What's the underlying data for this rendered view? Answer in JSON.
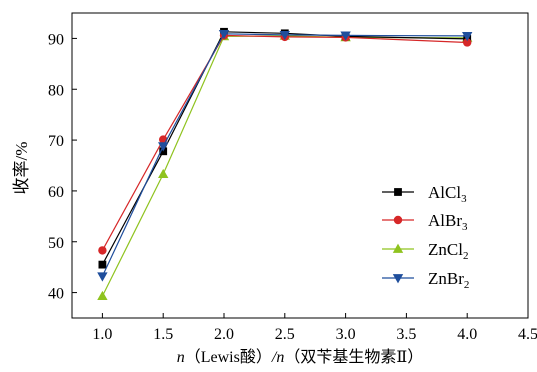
{
  "chart_data": {
    "type": "line",
    "title": "",
    "ylabel": "收率/%",
    "xlabel": {
      "n1": "n",
      "paren_open": "（",
      "part1": "Lewis酸",
      "paren_close": "）",
      "slash": "/",
      "n2": "n",
      "part2_open": "（",
      "part2": "双苄基生物素",
      "roman": "Ⅱ",
      "part2_close": "）"
    },
    "xlim": [
      0.75,
      4.5
    ],
    "ylim": [
      35,
      95
    ],
    "xticks": [
      "1.0",
      "1.5",
      "2.0",
      "2.5",
      "3.0",
      "3.5",
      "4.0",
      "4.5"
    ],
    "yticks": [
      "40",
      "50",
      "60",
      "70",
      "80",
      "90"
    ],
    "x": [
      1.0,
      1.5,
      2.0,
      2.5,
      3.0,
      4.0
    ],
    "legend_position": "center-right",
    "series": [
      {
        "name": "AlCl₃",
        "base": "AlCl",
        "sub": "3",
        "color": "#000000",
        "marker": "square",
        "values": [
          45.5,
          67.8,
          91.3,
          91.0,
          90.4,
          89.9
        ]
      },
      {
        "name": "AlBr₃",
        "base": "AlBr",
        "sub": "3",
        "color": "#d62728",
        "marker": "circle",
        "values": [
          48.3,
          70.1,
          90.6,
          90.3,
          90.2,
          89.2
        ]
      },
      {
        "name": "ZnCl₂",
        "base": "ZnCl",
        "sub": "2",
        "color": "#8fc31f",
        "marker": "triangle-up",
        "values": [
          39.3,
          63.3,
          90.4,
          90.5,
          90.2,
          90.1
        ]
      },
      {
        "name": "ZnBr₂",
        "base": "ZnBr",
        "sub": "2",
        "color": "#1f4e9c",
        "marker": "triangle-down",
        "values": [
          43.2,
          68.8,
          90.9,
          90.7,
          90.6,
          90.5
        ]
      }
    ]
  }
}
